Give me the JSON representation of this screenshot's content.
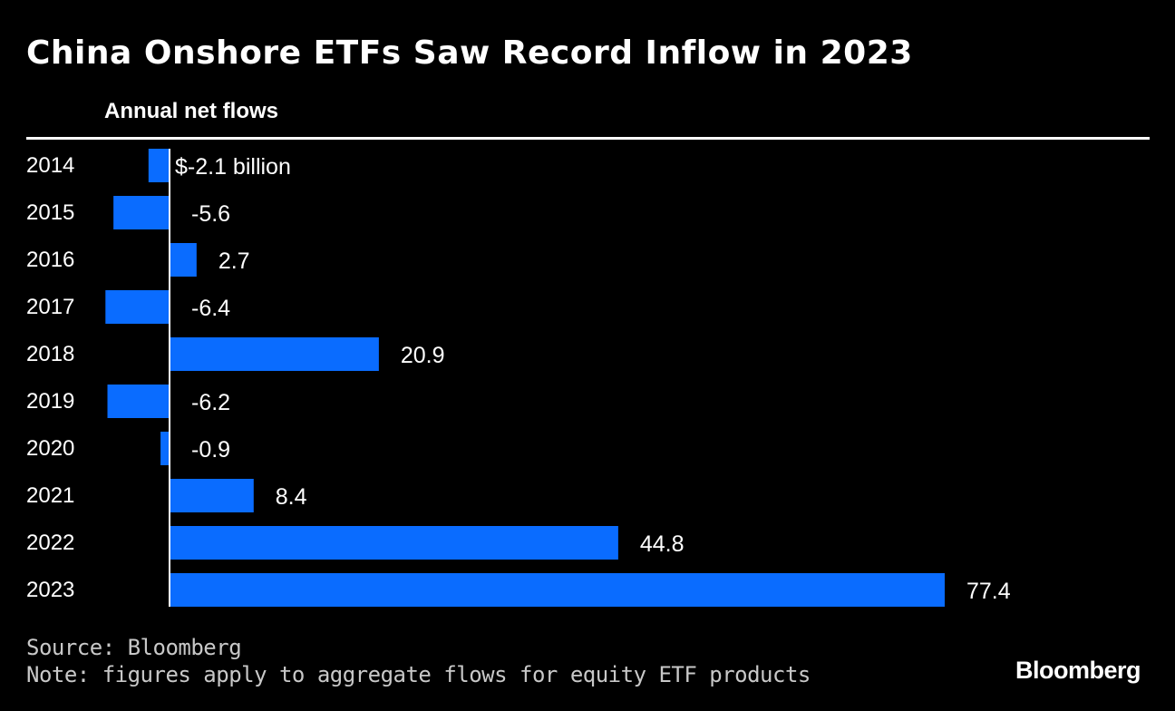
{
  "title": "China Onshore ETFs Saw Record Inflow in 2023",
  "subtitle": "Annual net flows",
  "source": "Source: Bloomberg",
  "note": "Note: figures apply to aggregate flows for equity ETF products",
  "logo": "Bloomberg",
  "colors": {
    "background": "#000000",
    "bar": "#0a6cff",
    "text": "#ffffff"
  },
  "chart_data": {
    "type": "bar",
    "orientation": "horizontal",
    "categories": [
      "2014",
      "2015",
      "2016",
      "2017",
      "2018",
      "2019",
      "2020",
      "2021",
      "2022",
      "2023"
    ],
    "values": [
      -2.1,
      -5.6,
      2.7,
      -6.4,
      20.9,
      -6.2,
      -0.9,
      8.4,
      44.8,
      77.4
    ],
    "value_labels": [
      "$-2.1 billion",
      "-5.6",
      "2.7",
      "-6.4",
      "20.9",
      "-6.2",
      "-0.9",
      "8.4",
      "44.8",
      "77.4"
    ],
    "title": "China Onshore ETFs Saw Record Inflow in 2023",
    "subtitle": "Annual net flows",
    "unit": "billion USD",
    "xlim": [
      -6.4,
      77.4
    ],
    "grid": false,
    "legend": "none"
  }
}
